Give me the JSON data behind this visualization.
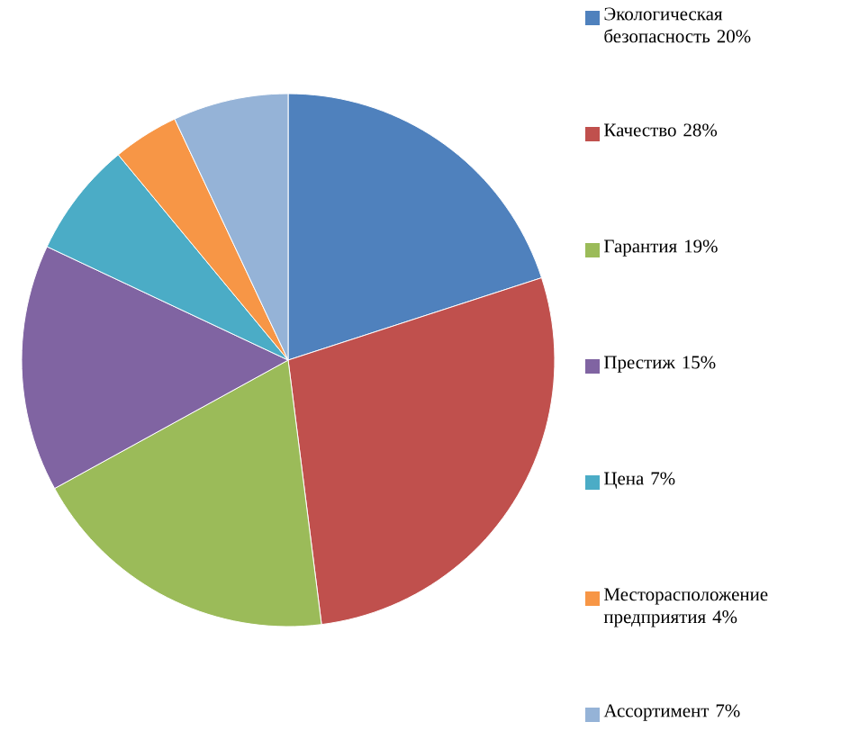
{
  "chart_data": {
    "type": "pie",
    "categories": [
      "Экологическая безопасность 20%",
      "Качество 28%",
      "Гарантия 19%",
      "Престиж 15%",
      "Цена 7%",
      "Месторасположение предприятия 4%",
      "Ассортимент 7%"
    ],
    "values": [
      20,
      28,
      19,
      15,
      7,
      4,
      7
    ],
    "colors": [
      "#4f81bd",
      "#c0504d",
      "#9bbb59",
      "#8064a2",
      "#4bacc6",
      "#f79646",
      "#95b3d7"
    ],
    "legend": "right"
  }
}
